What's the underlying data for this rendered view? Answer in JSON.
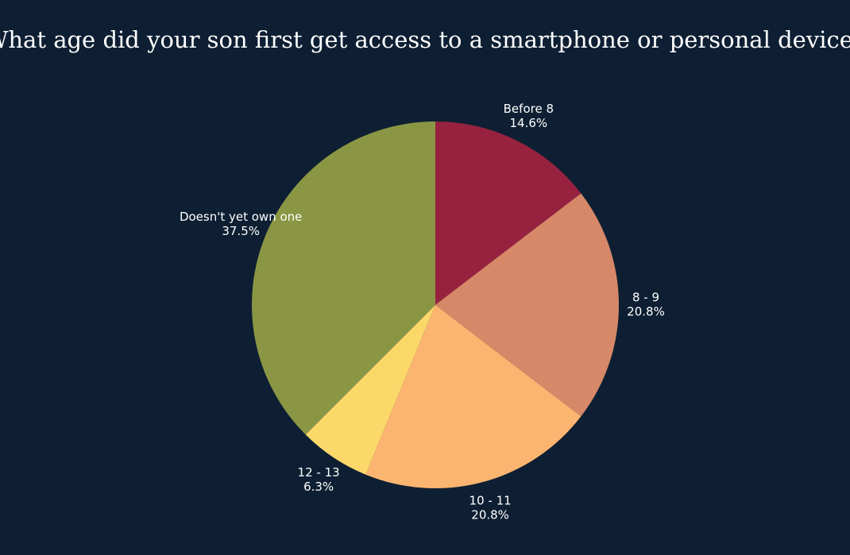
{
  "chart_data": {
    "type": "pie",
    "title": "What age did your son first get access to a smartphone or personal device?",
    "categories": [
      "Before 8",
      "8 - 9",
      "10 - 11",
      "12 - 13",
      "Doesn't yet own one"
    ],
    "values": [
      14.6,
      20.8,
      20.8,
      6.3,
      37.5
    ],
    "value_labels": [
      "14.6%",
      "20.8%",
      "20.8%",
      "6.3%",
      "37.5%"
    ],
    "colors": [
      "#97223f",
      "#d68868",
      "#fbb570",
      "#fcd76a",
      "#8b9644"
    ]
  }
}
